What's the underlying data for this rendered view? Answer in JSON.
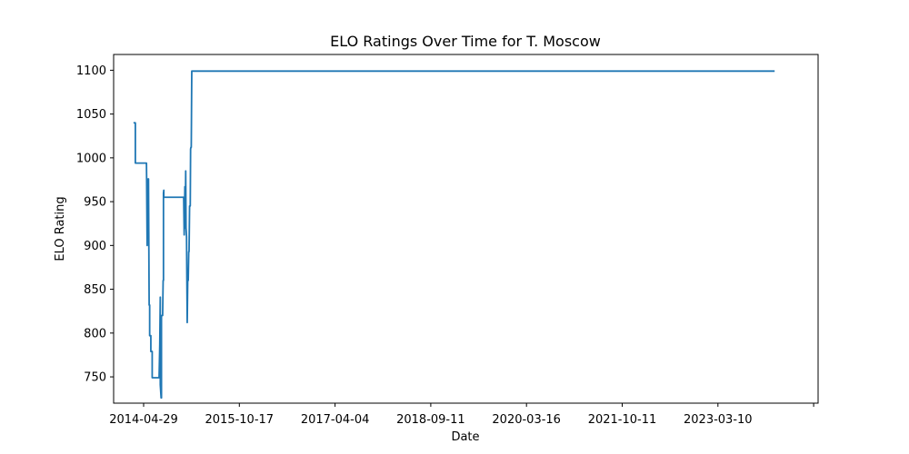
{
  "chart_data": {
    "type": "line",
    "title": "ELO Ratings Over Time for T. Moscow",
    "xlabel": "Date",
    "ylabel": "ELO Rating",
    "xlim": [
      "2014-01-01",
      "2025-06-15"
    ],
    "ylim": [
      720,
      1118
    ],
    "grid": false,
    "x_ticks": [
      "2014-04-29",
      "2015-10-17",
      "2017-04-04",
      "2018-09-11",
      "2020-03-16",
      "2021-10-11",
      "2023-03-10",
      ""
    ],
    "y_ticks": [
      750,
      800,
      850,
      900,
      950,
      1000,
      1050,
      1100
    ],
    "series": [
      {
        "color": "#1f77b4",
        "x": [
          "2014-04-29",
          "2014-05-10",
          "2014-05-10",
          "2014-07-15",
          "2014-07-16",
          "2014-07-19",
          "2014-07-20",
          "2014-07-25",
          "2014-07-27",
          "2014-07-31",
          "2014-08-03",
          "2014-08-03",
          "2014-08-10",
          "2014-08-10",
          "2014-08-18",
          "2014-08-18",
          "2014-08-25",
          "2014-08-25",
          "2014-09-28",
          "2014-10-02",
          "2014-10-02",
          "2014-10-05",
          "2014-10-05",
          "2014-10-10",
          "2014-10-12",
          "2014-10-12",
          "2014-10-19",
          "2014-10-22",
          "2014-10-24",
          "2014-10-24",
          "2014-10-26",
          "2014-10-26",
          "2015-02-21",
          "2015-02-24",
          "2015-02-28",
          "2015-03-02",
          "2015-03-05",
          "2015-03-07",
          "2015-03-10",
          "2015-03-12",
          "2015-03-14",
          "2015-03-17",
          "2015-03-20",
          "2015-03-23",
          "2015-03-25",
          "2015-03-28",
          "2015-04-01",
          "2015-04-03",
          "2015-04-05",
          "2015-04-07",
          "2015-04-10",
          "2015-04-14",
          "2015-04-17",
          "2015-04-19",
          "2015-04-21",
          "2015-04-26",
          "2024-09-30"
        ],
        "y": [
          1040,
          1040,
          994,
          994,
          976,
          900,
          976,
          933,
          976,
          832,
          832,
          797,
          797,
          779,
          779,
          749,
          749,
          749,
          749,
          787,
          787,
          841,
          741,
          726,
          726,
          820,
          820,
          860,
          860,
          960,
          963,
          955,
          955,
          912,
          967,
          920,
          985,
          920,
          910,
          860,
          812,
          860,
          860,
          893,
          893,
          945,
          945,
          1010,
          1012,
          1012,
          1099,
          1099,
          1099,
          1099,
          1099,
          1099,
          1099
        ]
      }
    ]
  }
}
